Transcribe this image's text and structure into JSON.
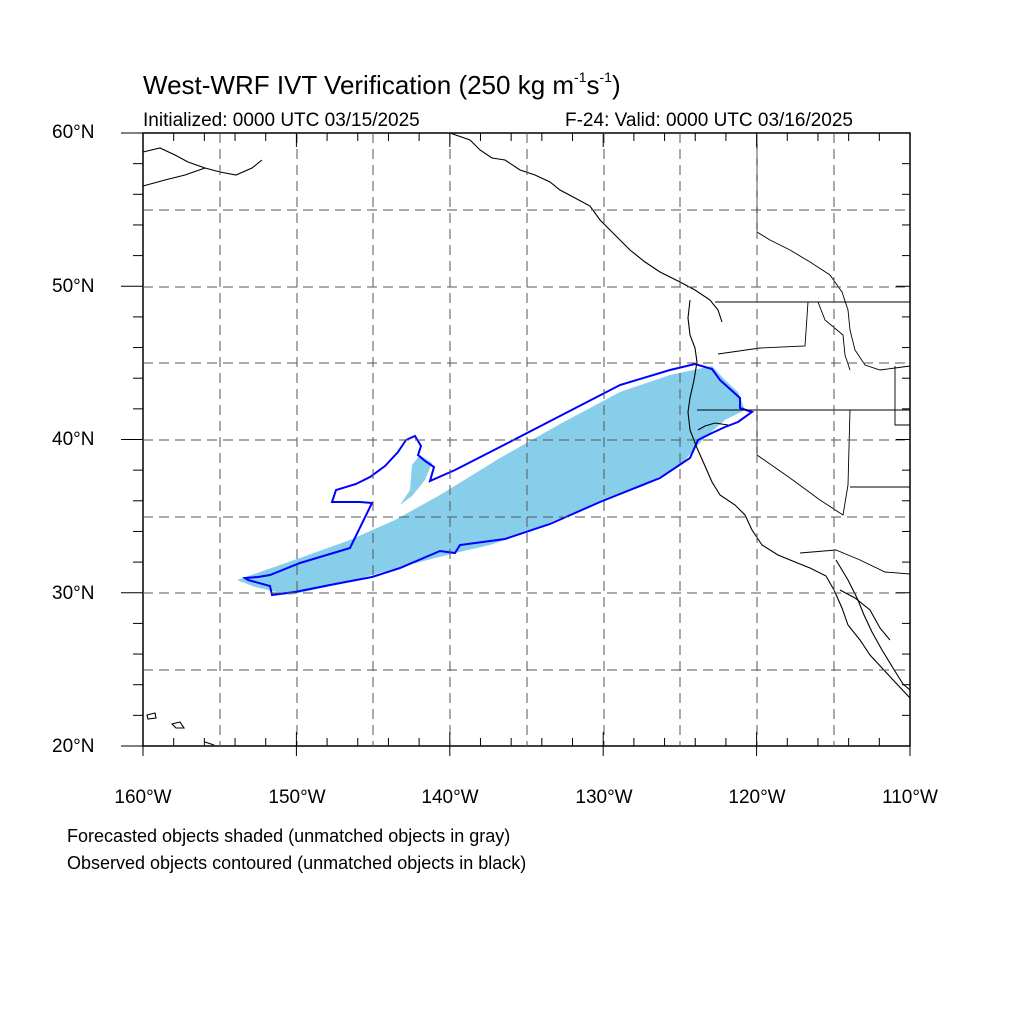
{
  "title": {
    "main": "West-WRF IVT Verification (250 kg m",
    "unit_sup1": "-1",
    "unit_mid": "s",
    "unit_sup2": "-1",
    "unit_close": ")"
  },
  "subtitle": {
    "initialized": "Initialized: 0000 UTC 03/15/2025",
    "valid": "F-24: Valid: 0000 UTC 03/16/2025"
  },
  "axes": {
    "lat_labels": [
      "60°N",
      "50°N",
      "40°N",
      "30°N",
      "20°N"
    ],
    "lon_labels": [
      "160°W",
      "150°W",
      "140°W",
      "130°W",
      "120°W",
      "110°W"
    ],
    "lat_range": [
      20,
      60
    ],
    "lon_range": [
      -160,
      -110
    ],
    "grid": "dashed every 5 degrees"
  },
  "legend": {
    "line1": "Forecasted objects shaded (unmatched objects in gray)",
    "line2": "Observed objects contoured (unmatched objects in black)"
  },
  "colors": {
    "forecast_fill": "#87ceeb",
    "observed_contour": "#0000ff",
    "coastline": "#000000",
    "grid": "#555555"
  },
  "chart_data": {
    "type": "map",
    "projection": "cylindrical equidistant",
    "domain": {
      "lon": [
        -160,
        -110
      ],
      "lat": [
        20,
        60
      ]
    },
    "forecast_object": {
      "matched": true,
      "lon_extent": [
        -154,
        -120
      ],
      "lat_extent": [
        30,
        45
      ]
    },
    "observed_object": {
      "matched": true,
      "lon_extent": [
        -153,
        -120
      ],
      "lat_extent": [
        30,
        45
      ]
    }
  }
}
